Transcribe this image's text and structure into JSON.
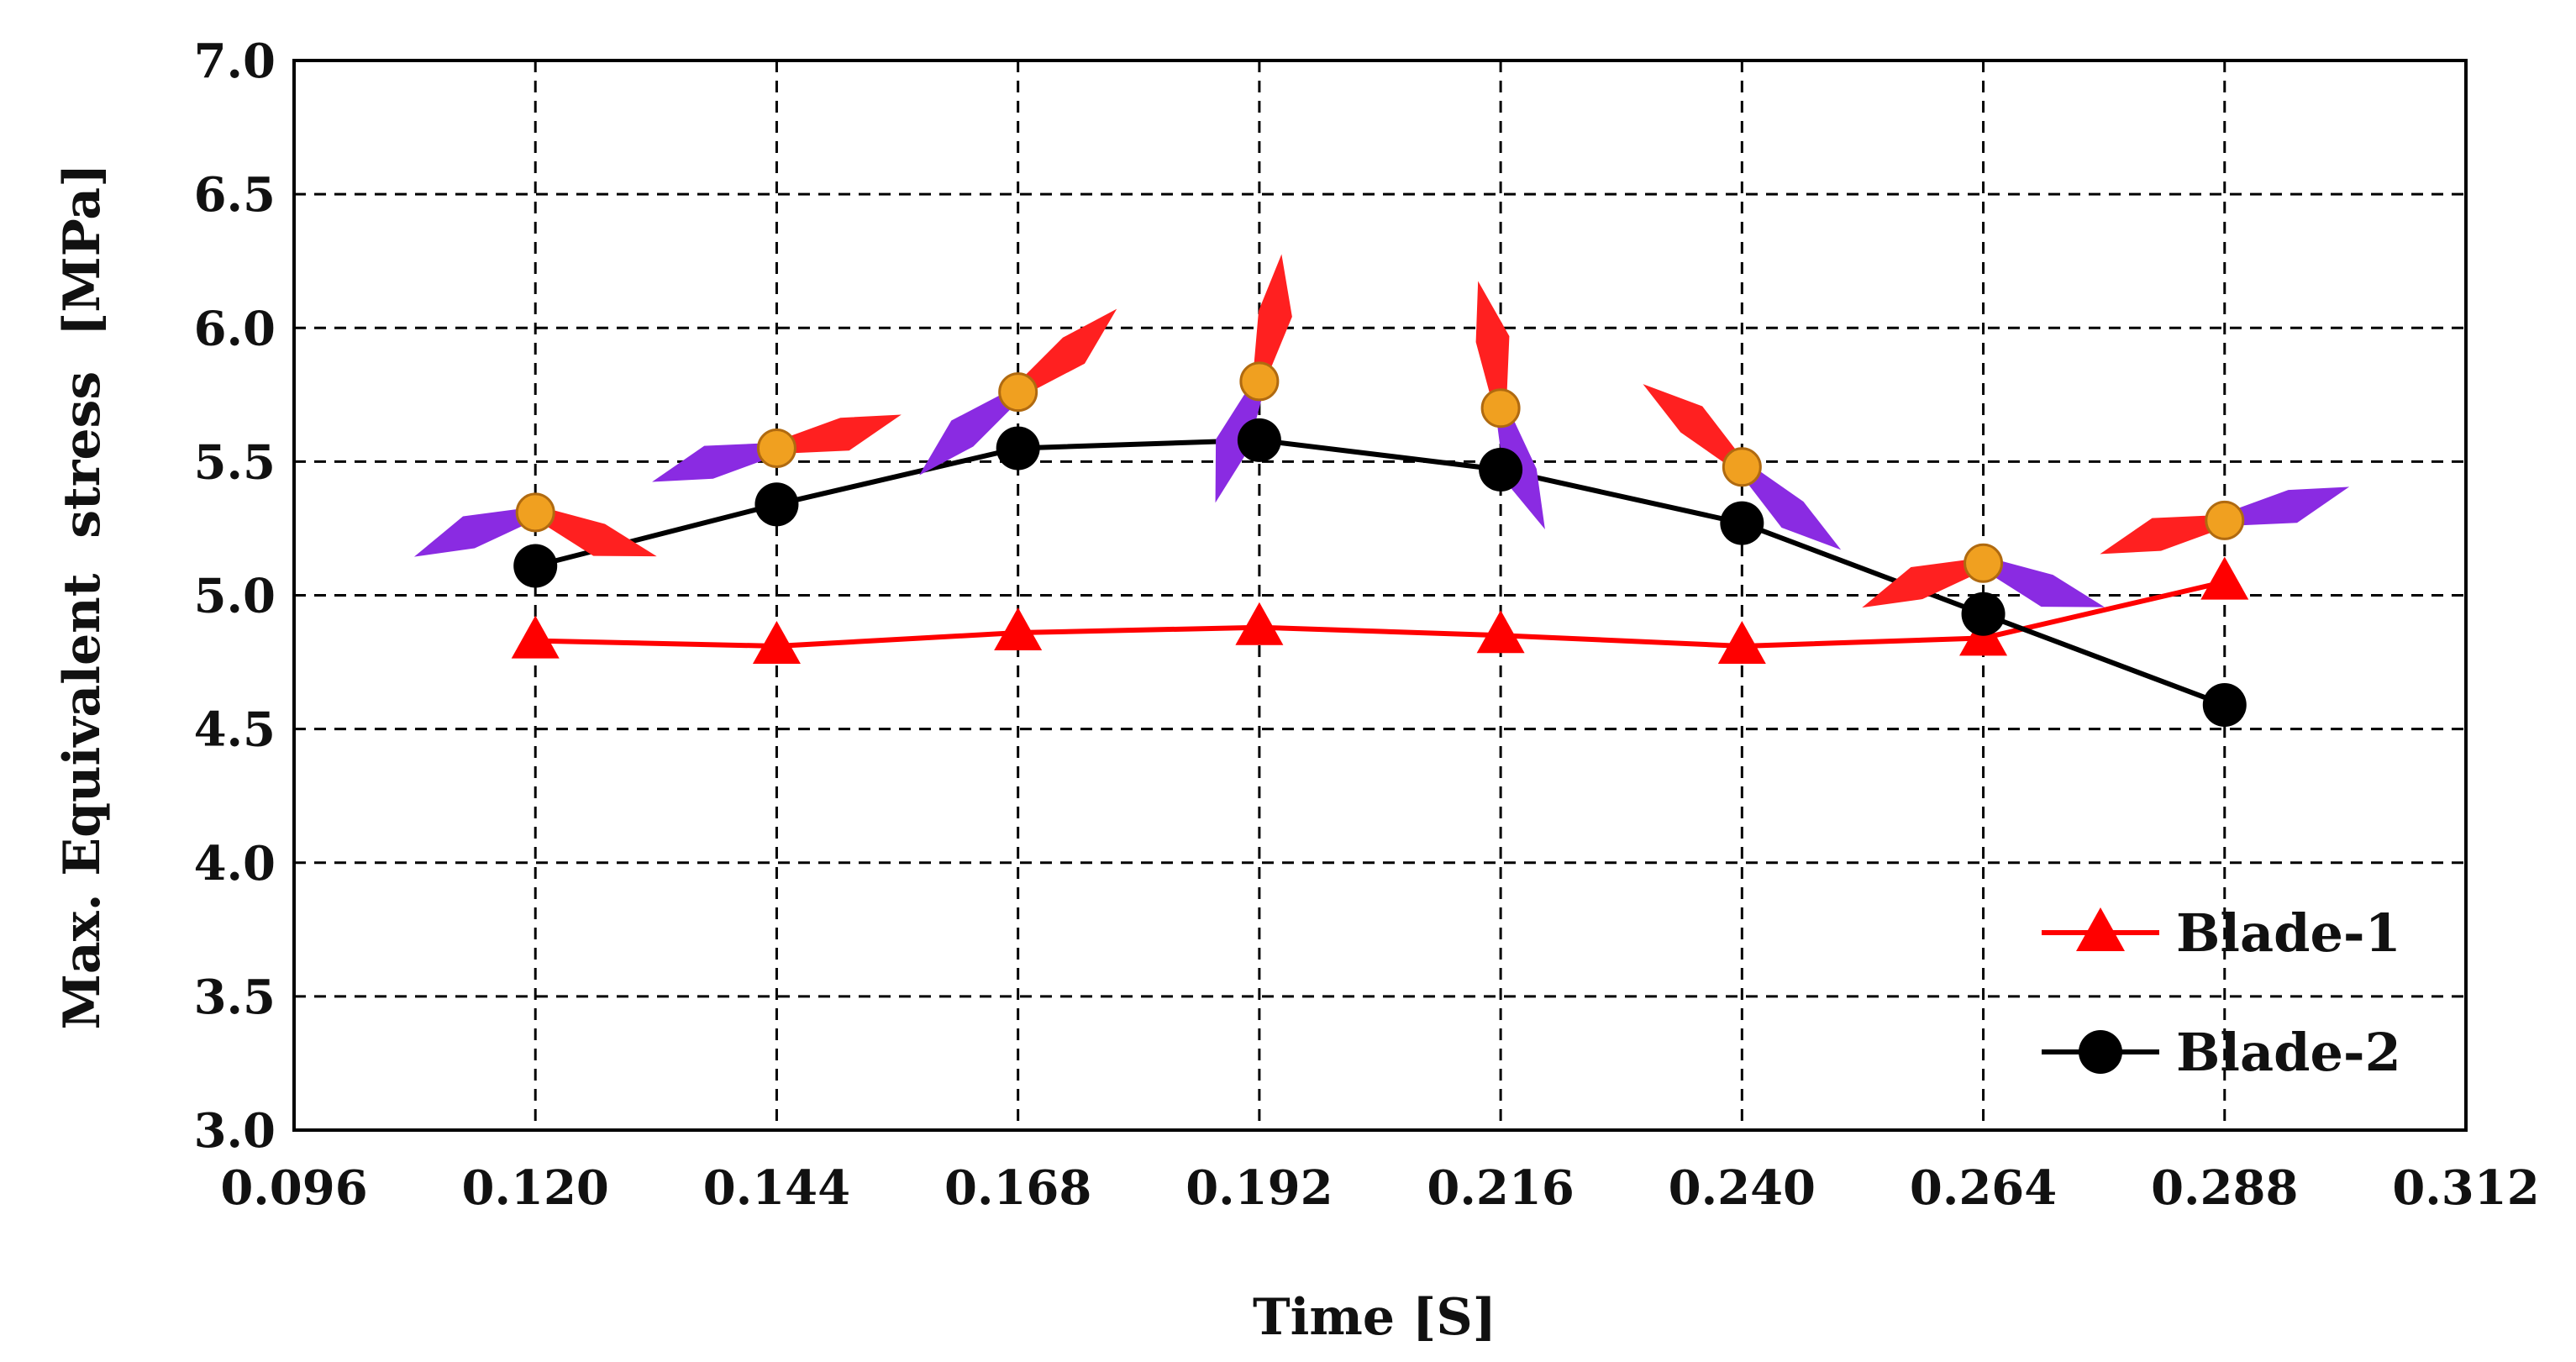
{
  "chart_data": {
    "type": "line",
    "title": "",
    "xlabel": "Time [S]",
    "ylabel": "Max. Equivalent  stress  [MPa]",
    "xlim": [
      0.096,
      0.312
    ],
    "ylim": [
      3.0,
      7.0
    ],
    "x_ticks": [
      "0.096",
      "0.120",
      "0.144",
      "0.168",
      "0.192",
      "0.216",
      "0.240",
      "0.264",
      "0.288",
      "0.312"
    ],
    "y_ticks": [
      "3.0",
      "3.5",
      "4.0",
      "4.5",
      "5.0",
      "5.5",
      "6.0",
      "6.5",
      "7.0"
    ],
    "grid": true,
    "legend_position": "bottom-right",
    "x": [
      0.12,
      0.144,
      0.168,
      0.192,
      0.216,
      0.24,
      0.264,
      0.288
    ],
    "series": [
      {
        "name": "Blade-1",
        "color": "#ff0000",
        "marker": "triangle",
        "values": [
          4.83,
          4.81,
          4.86,
          4.88,
          4.85,
          4.81,
          4.84,
          5.05
        ]
      },
      {
        "name": "Blade-2",
        "color": "#000000",
        "marker": "circle",
        "values": [
          5.11,
          5.34,
          5.55,
          5.58,
          5.47,
          5.27,
          4.93,
          4.59
        ]
      }
    ],
    "annotations": {
      "type": "rotor-orientation-icons",
      "hub_color": "#f0a020",
      "blade1_color": "#ff2020",
      "blade2_color": "#8a2be2",
      "hub_y_values": [
        5.31,
        5.55,
        5.76,
        5.8,
        5.7,
        5.48,
        5.12,
        5.28
      ],
      "blade1_angles_deg": [
        -20,
        15,
        40,
        80,
        100,
        140,
        200,
        195
      ],
      "blade2_angles_deg": [
        200,
        195,
        220,
        250,
        290,
        320,
        340,
        15
      ]
    }
  }
}
